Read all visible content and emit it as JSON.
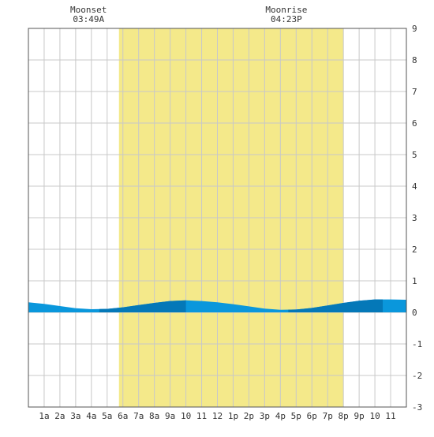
{
  "chart_data": {
    "type": "area",
    "title": "",
    "xlabel": "",
    "ylabel": "",
    "x_ticks": [
      "1a",
      "2a",
      "3a",
      "4a",
      "5a",
      "6a",
      "7a",
      "8a",
      "9a",
      "10",
      "11",
      "12",
      "1p",
      "2p",
      "3p",
      "4p",
      "5p",
      "6p",
      "7p",
      "8p",
      "9p",
      "10",
      "11"
    ],
    "y_ticks": [
      "9",
      "8",
      "7",
      "6",
      "5",
      "4",
      "3",
      "2",
      "1",
      "0",
      "-1",
      "-2",
      "-3"
    ],
    "ylim": [
      -3,
      9
    ],
    "xlim_hours": [
      0,
      24
    ],
    "grid": true,
    "daylight_hours": [
      5.75,
      20
    ],
    "annotations": [
      {
        "label": "Moonset",
        "time": "03:49A",
        "hour": 3.82
      },
      {
        "label": "Moonrise",
        "time": "04:23P",
        "hour": 16.38
      }
    ],
    "series": [
      {
        "x": [
          0,
          1,
          2,
          3,
          4,
          5,
          6,
          7,
          8,
          9,
          10,
          11,
          12,
          13,
          14,
          15,
          16,
          17,
          18,
          19,
          20,
          21,
          22,
          23,
          24
        ],
        "y": [
          0.32,
          0.27,
          0.2,
          0.13,
          0.1,
          0.11,
          0.16,
          0.23,
          0.3,
          0.36,
          0.38,
          0.36,
          0.32,
          0.26,
          0.19,
          0.12,
          0.08,
          0.09,
          0.14,
          0.22,
          0.3,
          0.37,
          0.41,
          0.41,
          0.4
        ]
      }
    ]
  },
  "colors": {
    "daylight": "#f4e98a",
    "grid": "#c8c8c8",
    "tide_light": "#0a97dc",
    "tide_dark": "#0478b8",
    "border": "#555555",
    "axis_text": "#333333"
  }
}
